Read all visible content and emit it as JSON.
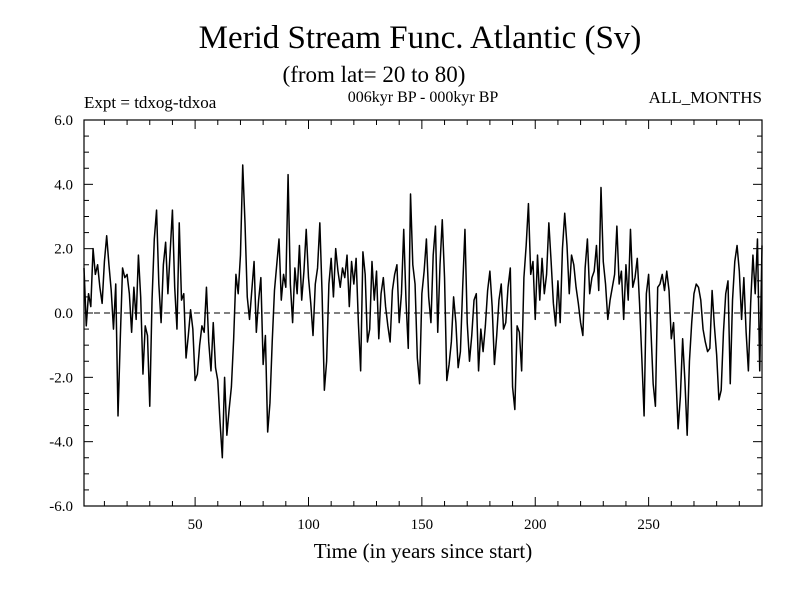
{
  "chart_data": {
    "type": "line",
    "title": "Merid Stream Func. Atlantic (Sv)",
    "subtitle": "(from lat= 20 to 80)",
    "left_label": "Expt = tdxog-tdxoa",
    "center_label": "006kyr BP - 000kyr BP",
    "right_label": "ALL_MONTHS",
    "xlabel": "Time (in years since start)",
    "ylabel": "",
    "xlim": [
      1,
      300
    ],
    "ylim": [
      -6,
      6
    ],
    "x_ticks": [
      50,
      100,
      150,
      200,
      250
    ],
    "x_tick_labels": [
      "50",
      "100",
      "150",
      "200",
      "250"
    ],
    "y_ticks": [
      -6,
      -4,
      -2,
      0,
      2,
      4,
      6
    ],
    "y_tick_labels": [
      "-6.0",
      "-4.0",
      "-2.0",
      "0.0",
      "2.0",
      "4.0",
      "6.0"
    ],
    "zero_line": true,
    "grid": false,
    "line_color": "#000000",
    "series": [
      {
        "name": "",
        "x_start": 1,
        "x_step": 1,
        "values": [
          1.4,
          -0.4,
          0.6,
          0.2,
          2.0,
          1.2,
          1.5,
          0.8,
          0.3,
          1.6,
          2.4,
          1.5,
          0.7,
          -0.5,
          0.9,
          -3.2,
          -0.8,
          1.4,
          1.1,
          1.2,
          0.6,
          -0.6,
          0.8,
          -0.2,
          1.8,
          0.5,
          -1.9,
          -0.4,
          -0.7,
          -2.9,
          0.4,
          2.3,
          3.2,
          0.9,
          -0.3,
          1.5,
          2.2,
          0.6,
          1.9,
          3.2,
          0.8,
          -0.5,
          2.8,
          0.4,
          0.6,
          -1.4,
          -0.7,
          0.1,
          -0.5,
          -2.1,
          -1.9,
          -1.0,
          -0.4,
          -0.6,
          0.8,
          -0.9,
          -1.8,
          -0.3,
          -1.7,
          -2.1,
          -3.4,
          -4.5,
          -2.0,
          -3.8,
          -3.0,
          -2.3,
          -0.8,
          1.2,
          0.6,
          1.8,
          4.6,
          2.8,
          0.5,
          -0.2,
          0.7,
          1.6,
          -0.6,
          0.4,
          1.1,
          -1.6,
          -0.7,
          -3.7,
          -2.8,
          -0.9,
          0.7,
          1.5,
          2.3,
          0.4,
          1.2,
          0.8,
          4.3,
          0.9,
          -0.3,
          1.4,
          0.6,
          2.1,
          0.4,
          1.3,
          2.6,
          1.1,
          0.3,
          -0.7,
          0.9,
          1.4,
          2.8,
          0.6,
          -2.4,
          -1.5,
          0.9,
          1.7,
          0.5,
          2.0,
          1.3,
          0.8,
          1.4,
          1.1,
          1.8,
          0.2,
          1.6,
          0.9,
          1.7,
          -0.3,
          -1.8,
          1.9,
          1.2,
          -0.9,
          -0.5,
          1.6,
          0.4,
          1.3,
          -0.8,
          0.6,
          1.1,
          0.2,
          -0.4,
          -0.9,
          0.7,
          1.2,
          1.5,
          -0.3,
          0.6,
          2.6,
          0.4,
          -1.1,
          3.7,
          1.5,
          0.9,
          -1.4,
          -2.2,
          0.6,
          1.3,
          2.3,
          0.5,
          -0.3,
          1.8,
          2.7,
          -0.6,
          1.5,
          2.9,
          1.1,
          -2.1,
          -1.6,
          -0.9,
          0.5,
          -0.3,
          -1.7,
          -1.2,
          0.8,
          2.6,
          -0.3,
          -1.5,
          -0.7,
          0.4,
          0.6,
          -1.8,
          -0.5,
          -1.2,
          -0.4,
          0.7,
          1.3,
          0.2,
          -1.6,
          -0.7,
          0.4,
          0.9,
          -0.5,
          -0.3,
          0.8,
          1.4,
          -2.3,
          -3.0,
          -0.4,
          -0.6,
          -1.8,
          1.1,
          2.1,
          3.4,
          1.2,
          1.6,
          -0.2,
          1.8,
          0.4,
          1.7,
          0.6,
          1.2,
          2.8,
          1.6,
          0.3,
          -0.4,
          1.0,
          -0.3,
          2.0,
          3.1,
          2.1,
          0.6,
          1.8,
          1.5,
          0.8,
          0.3,
          -0.3,
          -0.7,
          1.4,
          2.3,
          0.6,
          1.1,
          1.3,
          2.1,
          0.7,
          3.9,
          1.6,
          0.9,
          -0.2,
          0.4,
          0.8,
          1.2,
          2.7,
          0.9,
          1.3,
          -0.2,
          1.5,
          0.4,
          2.6,
          0.8,
          1.1,
          1.7,
          0.3,
          -1.4,
          -3.2,
          0.6,
          1.2,
          -0.5,
          -2.2,
          -2.9,
          0.8,
          0.9,
          1.2,
          0.7,
          1.3,
          0.7,
          -0.8,
          -0.3,
          -1.9,
          -3.6,
          -2.6,
          -0.8,
          -2.1,
          -3.8,
          -1.5,
          -0.3,
          0.6,
          0.9,
          0.8,
          0.4,
          -0.5,
          -0.9,
          -1.2,
          -1.1,
          0.7,
          -0.4,
          -1.3,
          -2.7,
          -2.4,
          -0.6,
          0.6,
          1.0,
          -2.2,
          0.4,
          1.6,
          2.1,
          1.3,
          -0.2,
          1.1,
          -0.6,
          -1.8,
          0.3,
          1.8,
          0.6,
          2.3,
          -1.8,
          2.1
        ]
      }
    ]
  }
}
